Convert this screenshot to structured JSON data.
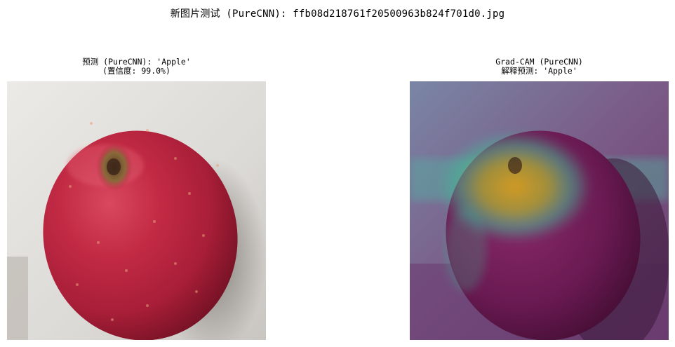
{
  "figure": {
    "suptitle": "新图片测试 (PureCNN): ffb08d218761f20500963b824f701d0.jpg"
  },
  "panels": [
    {
      "title_line1": "预测 (PureCNN): 'Apple'",
      "title_line2": "(置信度: 99.0%)",
      "image": "red-apple-photo"
    },
    {
      "title_line1": "Grad-CAM (PureCNN)",
      "title_line2": "解释预测: 'Apple'",
      "image": "grad-cam-heatmap-overlay"
    }
  ]
}
